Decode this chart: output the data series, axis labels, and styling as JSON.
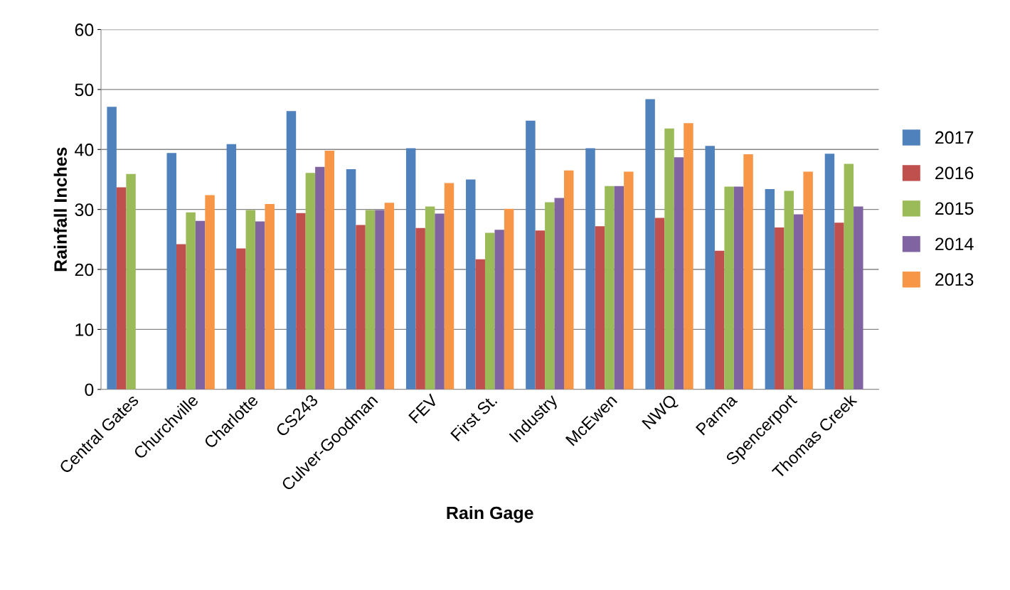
{
  "chart_data": {
    "type": "bar",
    "xlabel": "Rain Gage",
    "ylabel": "Rainfall Inches",
    "categories": [
      "Central Gates",
      "Churchville",
      "Charlotte",
      "CS243",
      "Culver-Goodman",
      "FEV",
      "First St.",
      "Industry",
      "McEwen",
      "NWQ",
      "Parma",
      "Spencerport",
      "Thomas Creek"
    ],
    "series": [
      {
        "name": "2017",
        "color": "#4f81bd",
        "values": [
          47.1,
          39.4,
          40.9,
          46.4,
          36.7,
          40.2,
          35.0,
          44.8,
          40.2,
          48.4,
          40.6,
          33.4,
          39.3
        ]
      },
      {
        "name": "2016",
        "color": "#c0504d",
        "values": [
          33.7,
          24.2,
          23.5,
          29.4,
          27.4,
          26.9,
          21.7,
          26.5,
          27.2,
          28.6,
          23.1,
          27.0,
          27.8
        ]
      },
      {
        "name": "2015",
        "color": "#9bbb59",
        "values": [
          35.9,
          29.5,
          29.9,
          36.1,
          29.9,
          30.5,
          26.1,
          31.2,
          33.9,
          43.5,
          33.8,
          33.1,
          37.6
        ]
      },
      {
        "name": "2014",
        "color": "#8064a2",
        "values": [
          null,
          28.1,
          28.0,
          37.1,
          29.9,
          29.3,
          26.6,
          31.9,
          33.9,
          38.7,
          33.8,
          29.2,
          30.5
        ]
      },
      {
        "name": "2013",
        "color": "#f79646",
        "values": [
          null,
          32.4,
          30.9,
          39.8,
          31.1,
          34.4,
          30.1,
          36.5,
          36.3,
          44.4,
          39.2,
          36.3,
          null
        ]
      }
    ],
    "ylim": [
      0,
      60
    ],
    "yticks": [
      0,
      10,
      20,
      30,
      40,
      50,
      60
    ],
    "grid": "y",
    "legend": "right"
  }
}
